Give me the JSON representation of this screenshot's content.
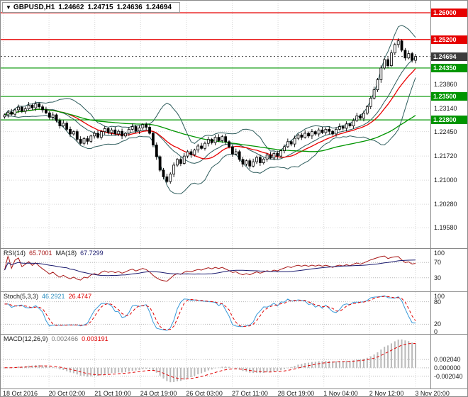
{
  "header": {
    "dropdown_icon": "▼",
    "symbol": "GBPUSD,H1",
    "open": "1.24662",
    "high": "1.24715",
    "low": "1.24636",
    "close": "1.24694"
  },
  "colors": {
    "resistance": "#e60000",
    "support": "#009500",
    "current_price": "#3c3c3c",
    "candle": "#000000",
    "bull_fill": "#ffffff",
    "bear_fill": "#000000",
    "bollinger": "#2e5c5c",
    "ma_fast": "#e80000",
    "ma_slow": "#009500",
    "rsi": "#a81818",
    "rsi_ma": "#1a1a6e",
    "stoch_k": "#3a9ad9",
    "stoch_d": "#e00000",
    "macd_hist": "#b9b9b9",
    "macd_signal": "#e00000",
    "grid": "#d8d8d8",
    "level_grid": "#b8b8b8",
    "border": "#8a8a8a"
  },
  "price_axis": {
    "levels": [
      {
        "price": 1.26,
        "label": "1.26000",
        "kind": "resistance"
      },
      {
        "price": 1.252,
        "label": "1.25200",
        "kind": "resistance"
      },
      {
        "price": 1.24694,
        "label": "1.24694",
        "kind": "current"
      },
      {
        "price": 1.2435,
        "label": "1.24350",
        "kind": "support"
      },
      {
        "price": 1.235,
        "label": "1.23500",
        "kind": "support"
      },
      {
        "price": 1.228,
        "label": "1.22800",
        "kind": "support"
      }
    ],
    "grid_labels": [
      {
        "price": 1.2386,
        "label": "1.23860"
      },
      {
        "price": 1.2314,
        "label": "1.23140"
      },
      {
        "price": 1.2245,
        "label": "1.22450"
      },
      {
        "price": 1.2172,
        "label": "1.21720"
      },
      {
        "price": 1.21,
        "label": "1.21000"
      },
      {
        "price": 1.2028,
        "label": "1.20280"
      },
      {
        "price": 1.1958,
        "label": "1.19580"
      }
    ]
  },
  "time_axis": {
    "labels": [
      "18 Oct 2016",
      "20 Oct 02:00",
      "21 Oct 10:00",
      "24 Oct 19:00",
      "26 Oct 03:00",
      "27 Oct 11:00",
      "28 Oct 19:00",
      "1 Nov 04:00",
      "2 Nov 12:00",
      "3 Nov 20:00"
    ]
  },
  "panels": {
    "rsi": {
      "name": "RSI(14)",
      "value": "65.7001",
      "ma_name": "MA(18)",
      "ma_value": "67.7299",
      "axis_labels": [
        "100",
        "70",
        "30"
      ],
      "levels": [
        70,
        30
      ]
    },
    "stoch": {
      "name": "Stoch(5,3,3)",
      "k_value": "46.2921",
      "d_value": "26.4747",
      "axis_labels": [
        "100",
        "80",
        "20",
        "0"
      ],
      "levels": [
        80,
        20
      ]
    },
    "macd": {
      "name": "MACD(12,26,9)",
      "macd_value": "0.002466",
      "signal_value": "0.003191",
      "axis_labels": [
        {
          "v": 0.00204,
          "label": "0.002040"
        },
        {
          "v": 0,
          "label": "0.000000"
        },
        {
          "v": -0.00204,
          "label": "-0.002040"
        }
      ]
    }
  },
  "chart_data": {
    "type": "candlestick",
    "symbol": "GBPUSD",
    "timeframe": "H1",
    "title": "GBPUSD,H1",
    "price_range": {
      "min": 1.1897,
      "max": 1.2636
    },
    "x_labels": [
      "18 Oct 2016",
      "20 Oct 02:00",
      "21 Oct 10:00",
      "24 Oct 19:00",
      "26 Oct 03:00",
      "27 Oct 11:00",
      "28 Oct 19:00",
      "1 Nov 04:00",
      "2 Nov 12:00",
      "3 Nov 20:00"
    ],
    "current_price": 1.24694,
    "horizontal_lines": [
      {
        "price": 1.26,
        "color": "red",
        "role": "resistance"
      },
      {
        "price": 1.252,
        "color": "red",
        "role": "resistance"
      },
      {
        "price": 1.2435,
        "color": "green",
        "role": "support"
      },
      {
        "price": 1.235,
        "color": "green",
        "role": "support"
      },
      {
        "price": 1.228,
        "color": "green",
        "role": "support"
      }
    ],
    "overlays": [
      {
        "name": "Bollinger Bands",
        "period": 12,
        "deviation": 2
      },
      {
        "name": "MA fast (red)",
        "period": 16
      },
      {
        "name": "MA slow (green)",
        "period": 48
      }
    ],
    "close": [
      1.2295,
      1.2303,
      1.2297,
      1.231,
      1.2318,
      1.2306,
      1.2313,
      1.2324,
      1.2316,
      1.2328,
      1.2319,
      1.231,
      1.2301,
      1.2288,
      1.2295,
      1.2278,
      1.2262,
      1.227,
      1.2252,
      1.2238,
      1.2245,
      1.2222,
      1.221,
      1.2224,
      1.2216,
      1.2232,
      1.224,
      1.2228,
      1.2245,
      1.2254,
      1.2242,
      1.225,
      1.2238,
      1.2246,
      1.2232,
      1.224,
      1.2252,
      1.226,
      1.2247,
      1.2256,
      1.2266,
      1.2258,
      1.224,
      1.2205,
      1.217,
      1.213,
      1.211,
      1.2096,
      1.2118,
      1.2145,
      1.2162,
      1.215,
      1.2172,
      1.2185,
      1.2176,
      1.219,
      1.2202,
      1.2195,
      1.221,
      1.2222,
      1.2212,
      1.2228,
      1.2218,
      1.223,
      1.2215,
      1.22,
      1.2178,
      1.2185,
      1.2162,
      1.2148,
      1.2158,
      1.2142,
      1.2155,
      1.2168,
      1.2152,
      1.2163,
      1.2175,
      1.2166,
      1.218,
      1.2172,
      1.2188,
      1.22,
      1.2215,
      1.2208,
      1.2225,
      1.2235,
      1.2228,
      1.224,
      1.2232,
      1.2245,
      1.2238,
      1.225,
      1.2242,
      1.2252,
      1.2246,
      1.2238,
      1.2252,
      1.226,
      1.2255,
      1.2268,
      1.2262,
      1.2278,
      1.2292,
      1.2285,
      1.23,
      1.232,
      1.2345,
      1.237,
      1.24,
      1.2435,
      1.246,
      1.2442,
      1.248,
      1.2505,
      1.2516,
      1.2488,
      1.2465,
      1.2478,
      1.2458,
      1.24694
    ],
    "indicators": [
      {
        "type": "line",
        "name": "RSI",
        "params": [
          14
        ],
        "last": 65.7001,
        "ma_period": 18,
        "ma_last": 67.7299,
        "range": [
          0,
          100
        ],
        "levels": [
          70,
          30
        ]
      },
      {
        "type": "line",
        "name": "Stochastic",
        "params": [
          5,
          3,
          3
        ],
        "k_last": 46.2921,
        "d_last": 26.4747,
        "range": [
          0,
          100
        ],
        "levels": [
          80,
          20
        ]
      },
      {
        "type": "histogram+line",
        "name": "MACD",
        "params": [
          12,
          26,
          9
        ],
        "macd_last": 0.002466,
        "signal_last": 0.003191
      }
    ]
  }
}
